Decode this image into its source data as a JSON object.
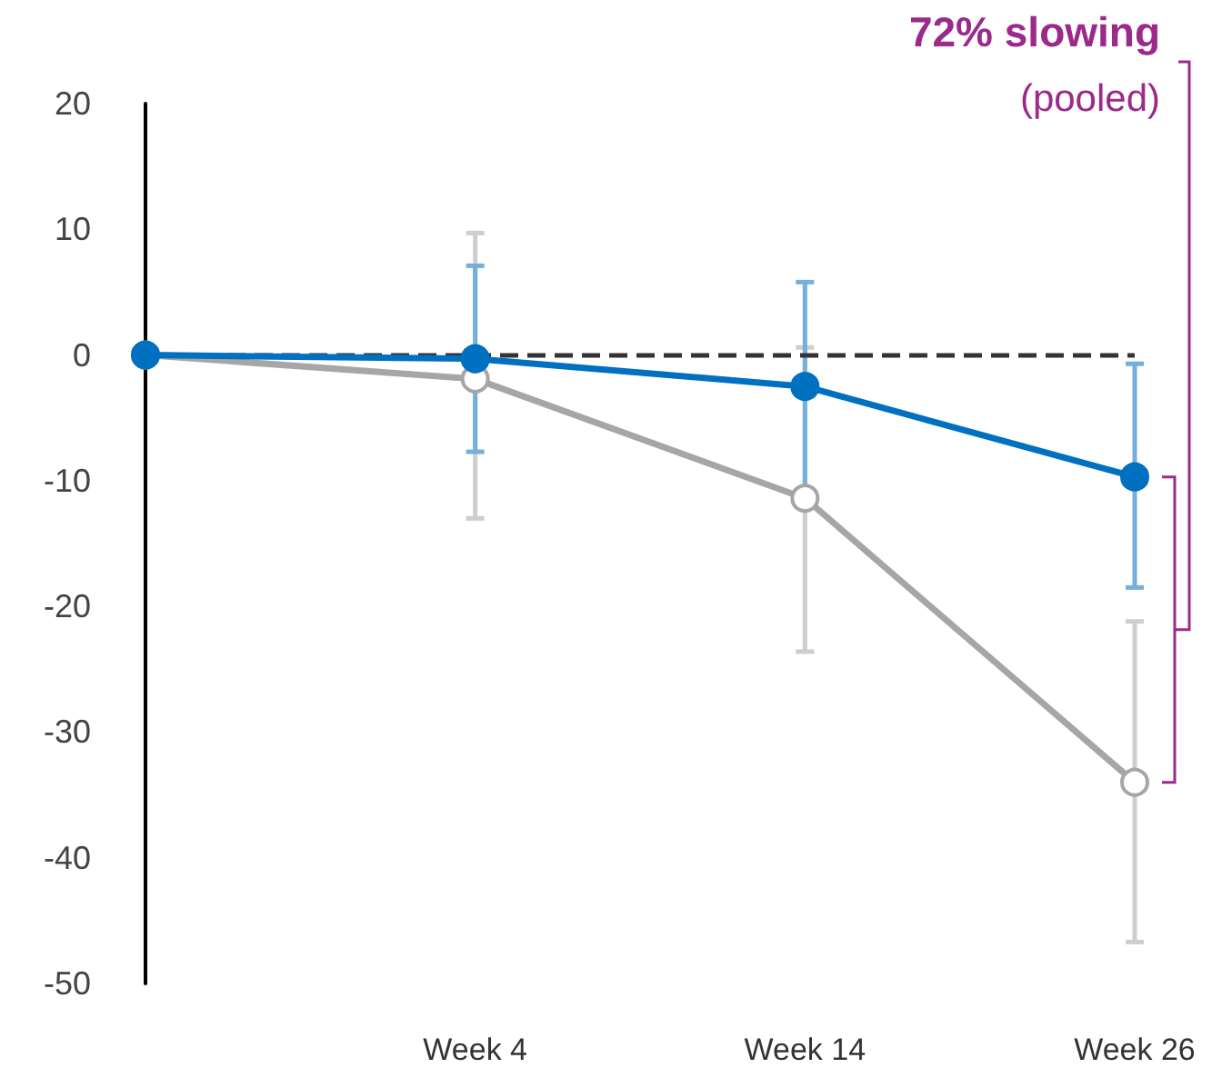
{
  "chart_data": {
    "type": "line",
    "categories": [
      null,
      "Week 4",
      "Week 14",
      "Week 26"
    ],
    "ylim": [
      -50,
      20
    ],
    "yticks": [
      -50,
      -40,
      -30,
      -20,
      -10,
      0,
      10,
      20
    ],
    "grid": false,
    "marker": "circle",
    "line_style": "solid",
    "series": [
      {
        "color": "#a6a6a6",
        "values": [
          0,
          -1.9,
          -11.4,
          -34
        ],
        "errors": [
          null,
          [
            -13,
            9.7
          ],
          [
            -23.6,
            0.6
          ],
          [
            -46.7,
            -21.2
          ]
        ]
      },
      {
        "color": "#0070c0",
        "values": [
          0,
          -0.3,
          -2.5,
          -9.7
        ],
        "errors": [
          null,
          [
            -7.7,
            7.1
          ],
          [
            -10.8,
            5.8
          ],
          [
            -18.5,
            -0.7
          ]
        ]
      }
    ],
    "ref_lines": [
      {
        "axis": "y",
        "value": 0,
        "label": null,
        "color": "#333333",
        "line_style": "dashed"
      }
    ],
    "annotations": [
      "72% slowing",
      "(pooled)"
    ]
  }
}
